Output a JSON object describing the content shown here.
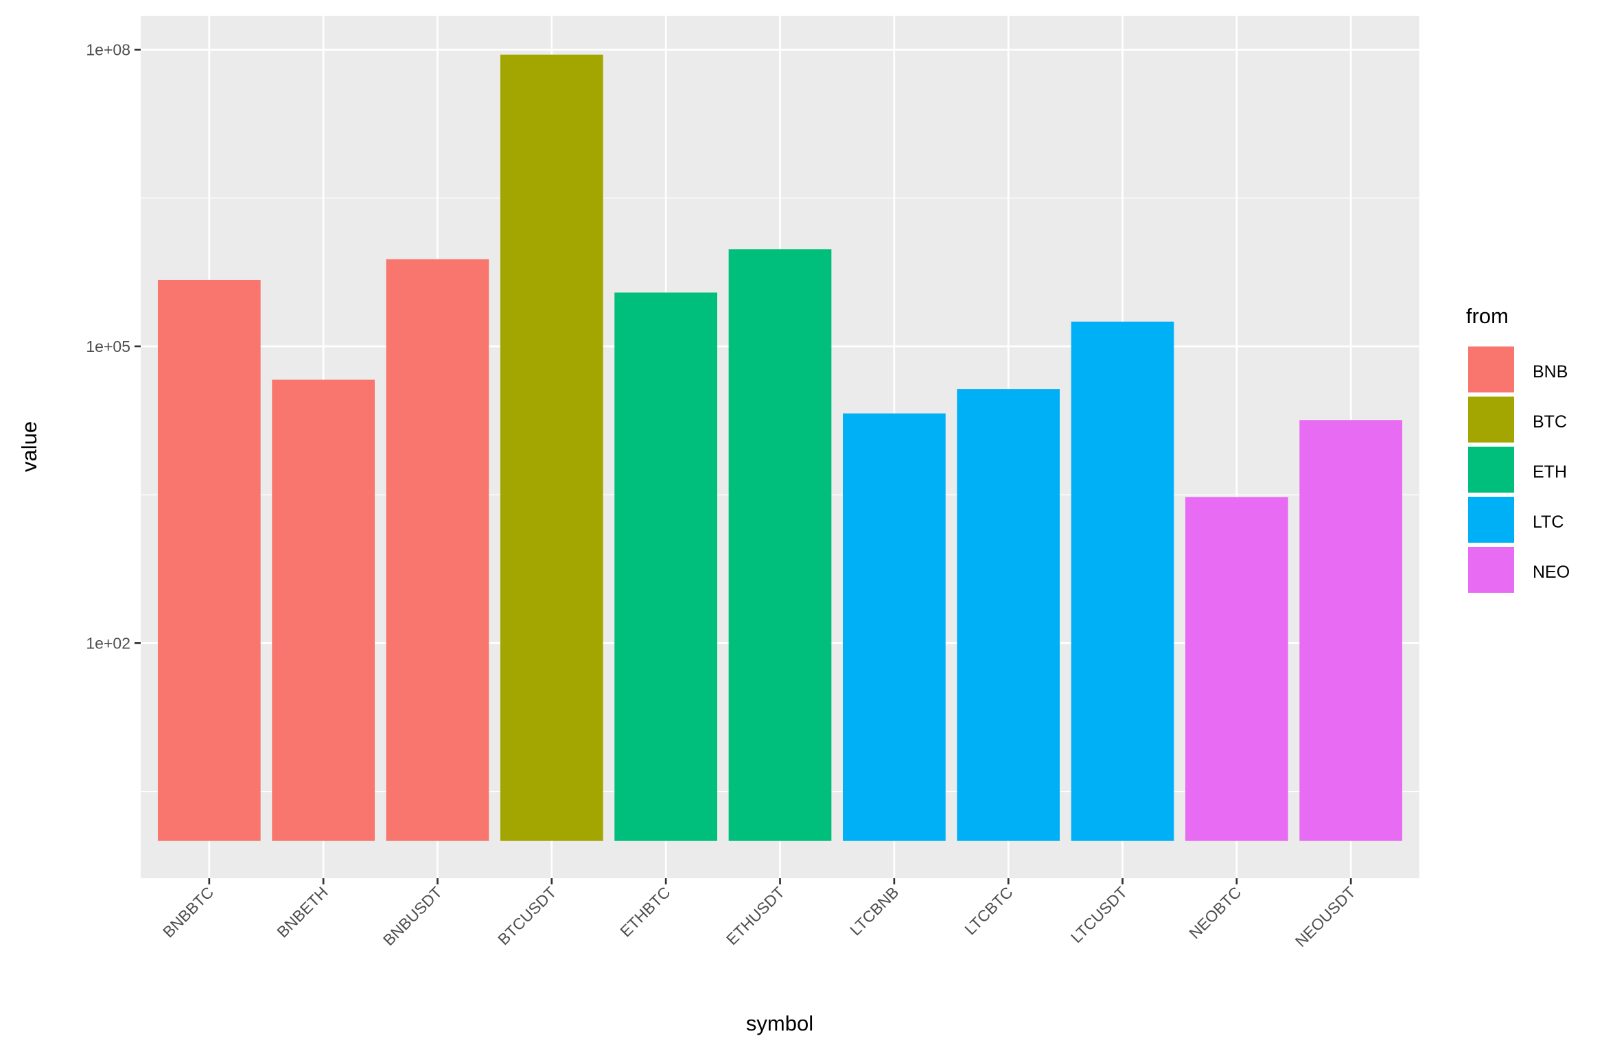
{
  "chart_data": {
    "type": "bar",
    "title": "",
    "xlabel": "symbol",
    "ylabel": "value",
    "y_scale": "log10",
    "ylim": [
      0.42,
      220000000.0
    ],
    "y_ticks": [
      {
        "value": 100,
        "label": "1e+02"
      },
      {
        "value": 100000,
        "label": "1e+05"
      },
      {
        "value": 100000000,
        "label": "1e+08"
      }
    ],
    "grid": true,
    "categories": [
      "BNBBTC",
      "BNBETH",
      "BNBUSDT",
      "BTCUSDT",
      "ETHBTC",
      "ETHUSDT",
      "LTCBNB",
      "LTCBTC",
      "LTCUSDT",
      "NEOBTC",
      "NEOUSDT"
    ],
    "values": [
      470000,
      46000,
      760000,
      89000000,
      350000,
      960000,
      21000,
      37000,
      178000,
      3000,
      18000
    ],
    "fill_group": [
      "BNB",
      "BNB",
      "BNB",
      "BTC",
      "ETH",
      "ETH",
      "LTC",
      "LTC",
      "LTC",
      "NEO",
      "NEO"
    ],
    "legend": {
      "title": "from",
      "position": "right",
      "entries": [
        {
          "label": "BNB",
          "color": "#F8766D"
        },
        {
          "label": "BTC",
          "color": "#A3A500"
        },
        {
          "label": "ETH",
          "color": "#00BF7D"
        },
        {
          "label": "LTC",
          "color": "#00B0F6"
        },
        {
          "label": "NEO",
          "color": "#E76BF3"
        }
      ]
    },
    "panel_background": "#EBEBEB"
  }
}
